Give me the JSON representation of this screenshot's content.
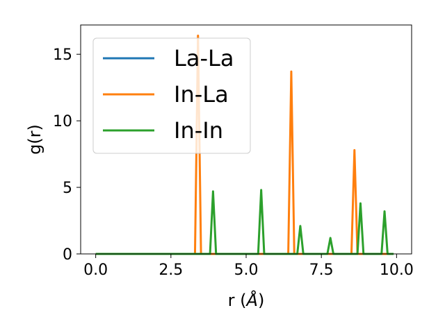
{
  "chart_data": {
    "type": "line",
    "title": "",
    "xlabel": "r (",
    "xlabel_unit": "Å",
    "xlabel_close": ")",
    "ylabel": "g(r)",
    "xlim": [
      -0.5,
      10.5
    ],
    "ylim": [
      0,
      17.2
    ],
    "xticks": [
      0.0,
      2.5,
      5.0,
      7.5,
      10.0
    ],
    "xtick_labels": [
      "0.0",
      "2.5",
      "5.0",
      "7.5",
      "10.0"
    ],
    "yticks": [
      0,
      5,
      10,
      15
    ],
    "ytick_labels": [
      "0",
      "5",
      "10",
      "15"
    ],
    "grid": false,
    "legend_position": "top-left",
    "series": [
      {
        "name": "La-La",
        "color": "#1f77b4",
        "points": [
          [
            0.0,
            0
          ],
          [
            9.9,
            0
          ]
        ]
      },
      {
        "name": "In-La",
        "color": "#ff7f0e",
        "points": [
          [
            0.0,
            0
          ],
          [
            3.3,
            0
          ],
          [
            3.4,
            16.4
          ],
          [
            3.5,
            0
          ],
          [
            6.4,
            0
          ],
          [
            6.5,
            13.7
          ],
          [
            6.6,
            0
          ],
          [
            8.5,
            0
          ],
          [
            8.6,
            7.8
          ],
          [
            8.7,
            0
          ],
          [
            9.9,
            0
          ]
        ]
      },
      {
        "name": "In-In",
        "color": "#2ca02c",
        "points": [
          [
            0.0,
            0
          ],
          [
            3.8,
            0
          ],
          [
            3.9,
            4.7
          ],
          [
            4.0,
            0
          ],
          [
            5.4,
            0
          ],
          [
            5.5,
            4.8
          ],
          [
            5.6,
            0
          ],
          [
            6.7,
            0
          ],
          [
            6.8,
            2.1
          ],
          [
            6.9,
            0
          ],
          [
            7.7,
            0
          ],
          [
            7.8,
            1.2
          ],
          [
            7.9,
            0
          ],
          [
            8.7,
            0
          ],
          [
            8.8,
            3.8
          ],
          [
            8.9,
            0
          ],
          [
            9.5,
            0
          ],
          [
            9.6,
            3.2
          ],
          [
            9.7,
            0
          ],
          [
            9.9,
            0
          ]
        ]
      }
    ]
  }
}
